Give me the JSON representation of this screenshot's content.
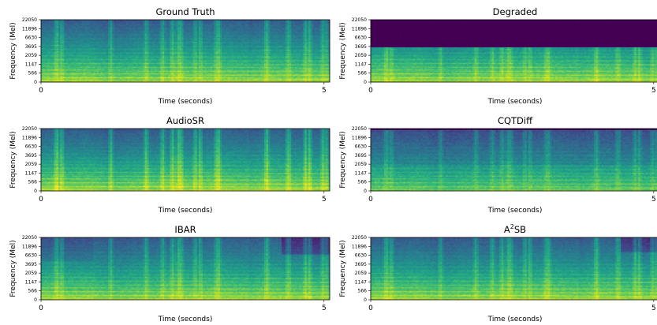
{
  "chart_data": [
    {
      "type": "heatmap",
      "title": "Ground Truth",
      "title_sup": "",
      "title_suffix": "",
      "xlabel": "Time (seconds)",
      "ylabel": "Frequency (Mel)",
      "xlim": [
        0,
        5.1
      ],
      "xticks": [
        "0",
        "5"
      ],
      "yticks": [
        "22050",
        "11896",
        "6630",
        "3695",
        "2059",
        "1147",
        "566",
        "0"
      ],
      "variant": "ground_truth",
      "colormap": "viridis"
    },
    {
      "type": "heatmap",
      "title": "Degraded",
      "title_sup": "",
      "title_suffix": "",
      "xlabel": "Time (seconds)",
      "ylabel": "Frequency (Mel)",
      "xlim": [
        0,
        5.1
      ],
      "xticks": [
        "0",
        "5"
      ],
      "yticks": [
        "22050",
        "11896",
        "6630",
        "3695",
        "2059",
        "1147",
        "566",
        "0"
      ],
      "variant": "degraded",
      "cutoff_hz": 4000,
      "colormap": "viridis"
    },
    {
      "type": "heatmap",
      "title": "AudioSR",
      "title_sup": "",
      "title_suffix": "",
      "xlabel": "Time (seconds)",
      "ylabel": "Frequency (Mel)",
      "xlim": [
        0,
        5.1
      ],
      "xticks": [
        "0",
        "5"
      ],
      "yticks": [
        "22050",
        "11896",
        "6630",
        "3695",
        "2059",
        "1147",
        "566",
        "0"
      ],
      "variant": "audiosr",
      "colormap": "viridis"
    },
    {
      "type": "heatmap",
      "title": "CQTDiff",
      "title_sup": "",
      "title_suffix": "",
      "xlabel": "Time (seconds)",
      "ylabel": "Frequency (Mel)",
      "xlim": [
        0,
        5.1
      ],
      "xticks": [
        "0",
        "5"
      ],
      "yticks": [
        "22050",
        "11896",
        "6630",
        "3695",
        "2059",
        "1147",
        "566",
        "0"
      ],
      "variant": "cqtdiff",
      "colormap": "viridis"
    },
    {
      "type": "heatmap",
      "title": "IBAR",
      "title_sup": "",
      "title_suffix": "",
      "xlabel": "Time (seconds)",
      "ylabel": "Frequency (Mel)",
      "xlim": [
        0,
        5.1
      ],
      "xticks": [
        "0",
        "5"
      ],
      "yticks": [
        "22050",
        "11896",
        "6630",
        "3695",
        "2059",
        "1147",
        "566",
        "0"
      ],
      "variant": "ibar",
      "colormap": "viridis"
    },
    {
      "type": "heatmap",
      "title": "A",
      "title_sup": "2",
      "title_suffix": "SB",
      "xlabel": "Time (seconds)",
      "ylabel": "Frequency (Mel)",
      "xlim": [
        0,
        5.1
      ],
      "xticks": [
        "0",
        "5"
      ],
      "yticks": [
        "22050",
        "11896",
        "6630",
        "3695",
        "2059",
        "1147",
        "566",
        "0"
      ],
      "variant": "a2sb",
      "colormap": "viridis"
    }
  ]
}
